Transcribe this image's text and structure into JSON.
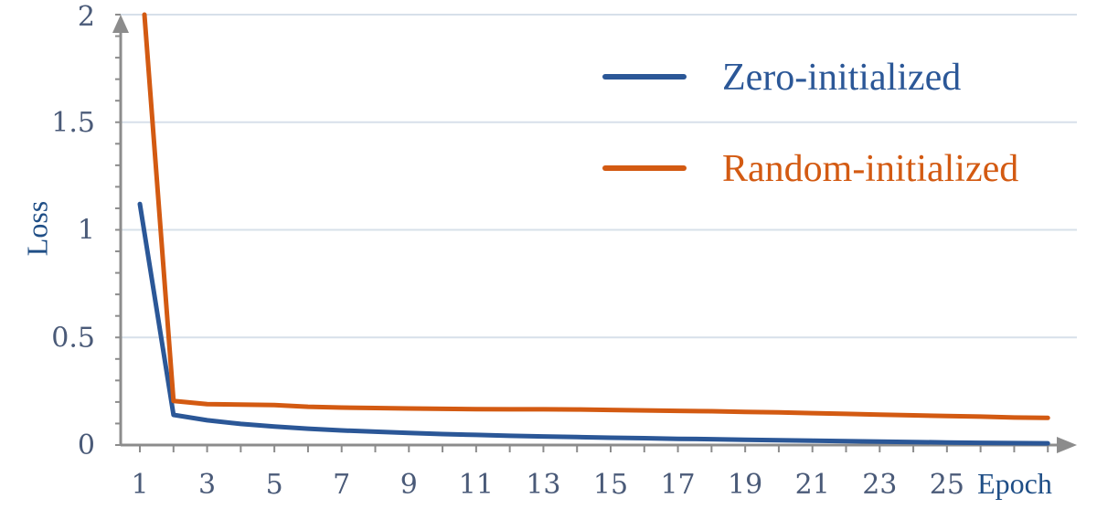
{
  "chart_data": {
    "type": "line",
    "xlabel": "Epoch",
    "ylabel": "Loss",
    "xlim": [
      1,
      29
    ],
    "ylim": [
      0,
      2
    ],
    "x_ticks": [
      "1",
      "3",
      "5",
      "7",
      "9",
      "11",
      "13",
      "15",
      "17",
      "19",
      "21",
      "23",
      "25"
    ],
    "y_ticks": [
      "0",
      "0.5",
      "1",
      "1.5",
      "2"
    ],
    "grid": "horizontal",
    "legend_position": "top-right",
    "colors": {
      "zero": "#2b5797",
      "random": "#d35a12",
      "grid": "#d7e0ea",
      "axis": "#8c8c8c"
    },
    "x": [
      1,
      2,
      3,
      4,
      5,
      6,
      7,
      8,
      9,
      10,
      11,
      12,
      13,
      14,
      15,
      16,
      17,
      18,
      19,
      20,
      21,
      22,
      23,
      24,
      25,
      26,
      27,
      28
    ],
    "series": [
      {
        "name": "Zero-initialized",
        "values": [
          1.12,
          0.14,
          0.115,
          0.098,
          0.086,
          0.076,
          0.068,
          0.062,
          0.056,
          0.051,
          0.047,
          0.043,
          0.04,
          0.037,
          0.034,
          0.032,
          0.029,
          0.027,
          0.024,
          0.022,
          0.02,
          0.018,
          0.016,
          0.014,
          0.012,
          0.01,
          0.009,
          0.008
        ]
      },
      {
        "name": "Random-initialized",
        "values": [
          2.0,
          0.205,
          0.19,
          0.188,
          0.186,
          0.178,
          0.174,
          0.172,
          0.17,
          0.168,
          0.167,
          0.166,
          0.166,
          0.165,
          0.163,
          0.161,
          0.159,
          0.157,
          0.154,
          0.152,
          0.148,
          0.145,
          0.141,
          0.138,
          0.135,
          0.132,
          0.128,
          0.126
        ]
      }
    ]
  }
}
